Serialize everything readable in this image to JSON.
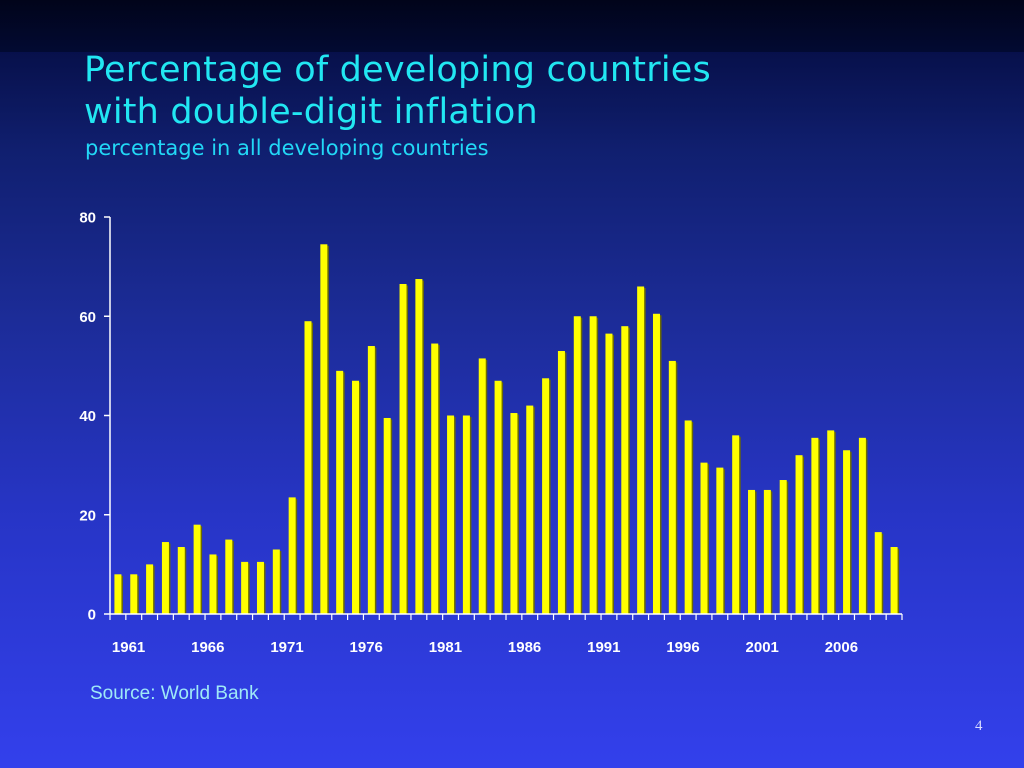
{
  "slide": {
    "title_lines": [
      "Percentage of developing countries",
      "with double-digit inflation"
    ],
    "subtitle": "percentage in all developing countries",
    "source": "Source: World Bank",
    "page_number": "4"
  },
  "colors": {
    "background_top": "#020a3a",
    "background_bottom": "#3340ec",
    "title": "#22e7f2",
    "subtitle": "#22d8f6",
    "bar_fill": "#ffff00",
    "bar_shadow": "#6b6b00",
    "axis": "#ffffff",
    "tick_label": "#ffffff",
    "source_text": "#9fe9f7"
  },
  "chart_data": {
    "type": "bar",
    "x_range": [
      1961,
      2010
    ],
    "x_tick_labels": [
      "1961",
      "1966",
      "1971",
      "1976",
      "1981",
      "1986",
      "1991",
      "1996",
      "2001",
      "2006"
    ],
    "y_tick_labels": [
      "0",
      "20",
      "40",
      "60",
      "80"
    ],
    "ylim": [
      0,
      80
    ],
    "grid": false,
    "legend": "none",
    "title": "",
    "xlabel": "",
    "ylabel": "",
    "series": [
      {
        "x": [
          1961,
          1962,
          1963,
          1964,
          1965,
          1966,
          1967,
          1968,
          1969,
          1970,
          1971,
          1972,
          1973,
          1974,
          1975,
          1976,
          1977,
          1978,
          1979,
          1980,
          1981,
          1982,
          1983,
          1984,
          1985,
          1986,
          1987,
          1988,
          1989,
          1990,
          1991,
          1992,
          1993,
          1994,
          1995,
          1996,
          1997,
          1998,
          1999,
          2000,
          2001,
          2002,
          2003,
          2004,
          2005,
          2006,
          2007,
          2008,
          2009,
          2010
        ],
        "values": [
          8,
          8,
          10,
          14.5,
          13.5,
          18,
          12,
          15,
          10.5,
          10.5,
          13,
          23.5,
          59,
          74.5,
          49,
          47,
          54,
          39.5,
          66.5,
          67.5,
          54.5,
          40,
          40,
          51.5,
          47,
          40.5,
          42,
          47.5,
          53,
          60,
          60,
          56.5,
          58,
          66,
          60.5,
          51,
          39,
          30.5,
          29.5,
          36,
          25,
          25,
          27,
          32,
          35.5,
          37,
          33,
          35.5,
          16.5,
          13.5
        ]
      }
    ]
  }
}
